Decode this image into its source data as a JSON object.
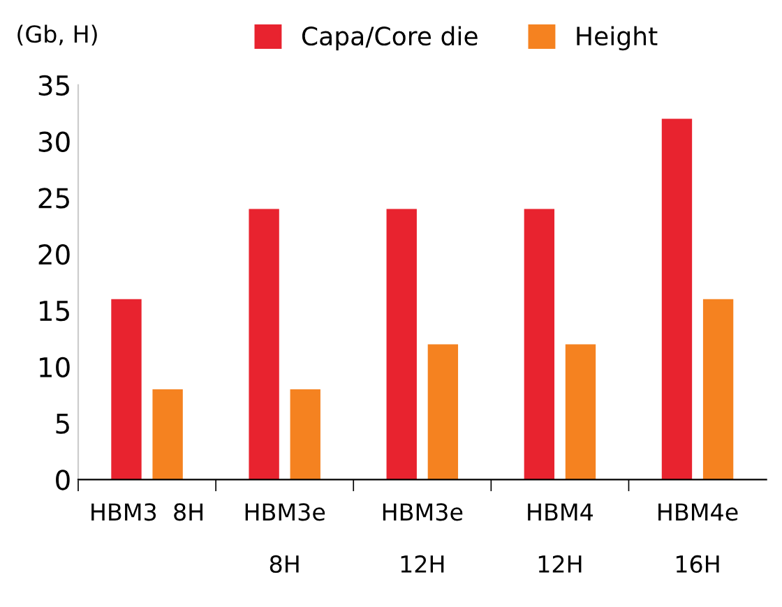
{
  "chart_data": {
    "type": "bar",
    "ylabel": "(Gb, H)",
    "categories": [
      "HBM3  8H",
      "HBM3e\n\n8H",
      "HBM3e\n\n12H",
      "HBM4\n\n12H",
      "HBM4e\n\n16H"
    ],
    "series": [
      {
        "name": "Capa/Core die",
        "color": "#e8232f",
        "values": [
          16,
          24,
          24,
          24,
          32
        ]
      },
      {
        "name": "Height",
        "color": "#f58220",
        "values": [
          8,
          8,
          12,
          12,
          16
        ]
      }
    ],
    "ylim": [
      0,
      35
    ],
    "yticks": [
      0,
      5,
      10,
      15,
      20,
      25,
      30,
      35
    ],
    "grid": false,
    "legend": "top"
  }
}
